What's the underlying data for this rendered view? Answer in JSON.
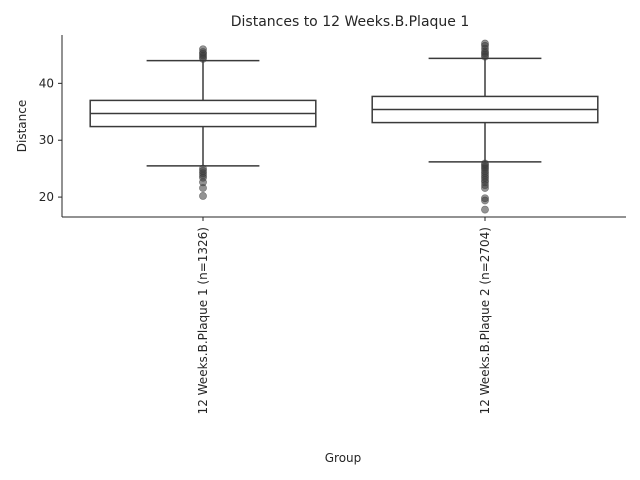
{
  "chart_data": {
    "type": "box",
    "title": "Distances to 12 Weeks.B.Plaque 1",
    "xlabel": "Group",
    "ylabel": "Distance",
    "ylim": [
      16.5,
      48.5
    ],
    "yticks": [
      20,
      30,
      40
    ],
    "grid": false,
    "groups": [
      {
        "label": "12 Weeks.B.Plaque 1 (n=1326)",
        "whisker_low": 25.5,
        "q1": 32.4,
        "median": 34.7,
        "q3": 37.0,
        "whisker_high": 44.0,
        "outliers": [
          44.3,
          44.6,
          44.9,
          45.2,
          45.5,
          46.0,
          25.0,
          24.6,
          24.2,
          23.8,
          23.4,
          22.6,
          21.6,
          20.2
        ]
      },
      {
        "label": "12 Weeks.B.Plaque 2 (n=2704)",
        "whisker_low": 26.2,
        "q1": 33.1,
        "median": 35.4,
        "q3": 37.7,
        "whisker_high": 44.4,
        "outliers": [
          44.7,
          45.0,
          45.3,
          45.6,
          46.1,
          46.6,
          47.0,
          25.9,
          25.6,
          25.3,
          25.0,
          24.6,
          24.2,
          23.8,
          23.4,
          23.0,
          22.6,
          22.1,
          21.6,
          19.8,
          19.4,
          17.8
        ]
      }
    ]
  }
}
